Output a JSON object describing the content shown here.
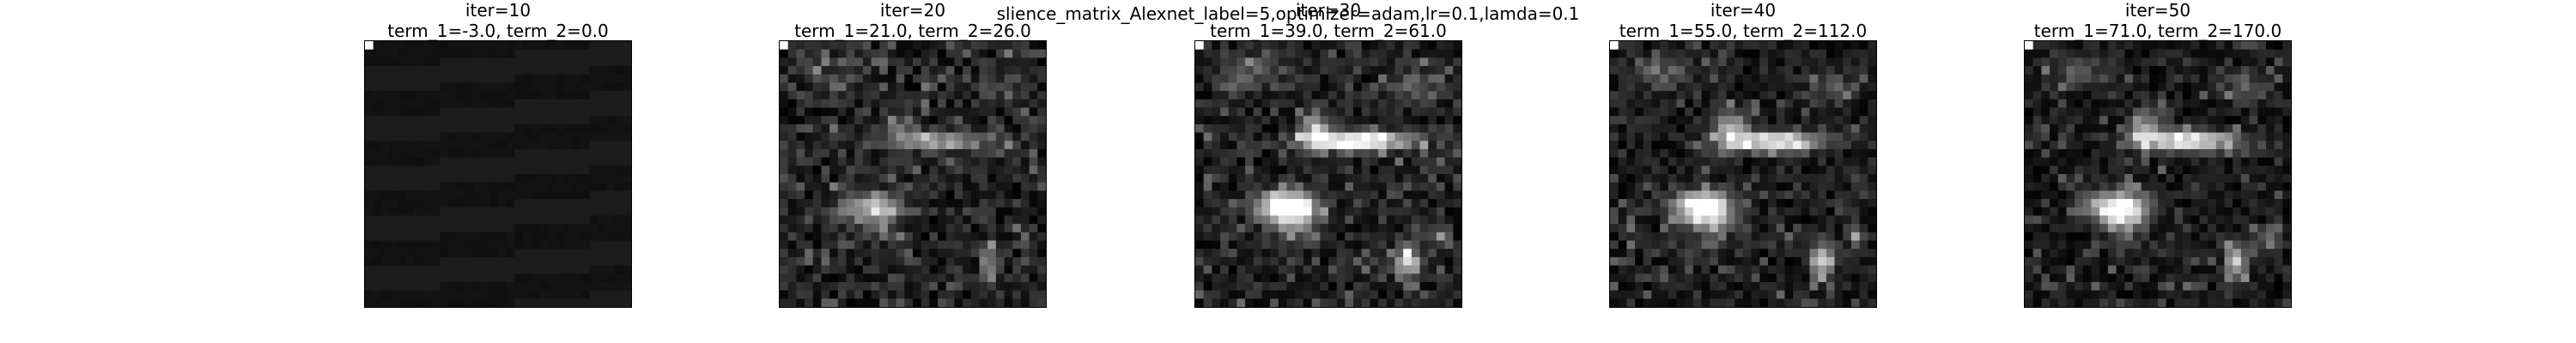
{
  "suptitle": "slience_matrix_Alexnet_label=5,optimizer=adam,lr=0.1,lamda=0.1",
  "chart_data": [
    {
      "type": "heatmap",
      "title_line1": "iter=10",
      "title_line2": "term_1=-3.0, term_2=0.0",
      "grid": "off",
      "colormap": "gray"
    },
    {
      "type": "heatmap",
      "title_line1": "iter=20",
      "title_line2": "term_1=21.0, term_2=26.0",
      "grid": "off",
      "colormap": "gray"
    },
    {
      "type": "heatmap",
      "title_line1": "iter=30",
      "title_line2": "term_1=39.0, term_2=61.0",
      "grid": "off",
      "colormap": "gray"
    },
    {
      "type": "heatmap",
      "title_line1": "iter=40",
      "title_line2": "term_1=55.0, term_2=112.0",
      "grid": "off",
      "colormap": "gray"
    },
    {
      "type": "heatmap",
      "title_line1": "iter=50",
      "title_line2": "term_1=71.0, term_2=170.0",
      "grid": "off",
      "colormap": "gray"
    }
  ]
}
